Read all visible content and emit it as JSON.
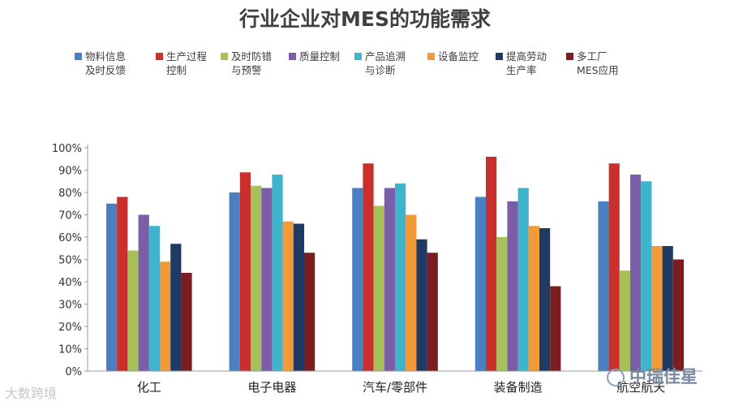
{
  "chart_data": {
    "type": "bar",
    "title": "行业企业对MES的功能需求",
    "categories": [
      "化工",
      "电子电器",
      "汽车/零部件",
      "装备制造",
      "航空航天"
    ],
    "series": [
      {
        "name": [
          "物料信息",
          "及时反馈"
        ],
        "color": "#4a7fc1",
        "values": [
          75,
          80,
          82,
          78,
          76
        ]
      },
      {
        "name": [
          "生产过程",
          "控制"
        ],
        "color": "#c9302c",
        "values": [
          78,
          89,
          93,
          96,
          93
        ]
      },
      {
        "name": [
          "及时防错",
          "与预警"
        ],
        "color": "#a6c15a",
        "values": [
          54,
          83,
          74,
          60,
          45
        ]
      },
      {
        "name": [
          "质量控制"
        ],
        "color": "#7b5ea7",
        "values": [
          70,
          82,
          82,
          76,
          88
        ]
      },
      {
        "name": [
          "产品追溯",
          "与诊断"
        ],
        "color": "#40b4cc",
        "values": [
          65,
          88,
          84,
          82,
          85
        ]
      },
      {
        "name": [
          "设备监控"
        ],
        "color": "#f29a38",
        "values": [
          49,
          67,
          70,
          65,
          56
        ]
      },
      {
        "name": [
          "提高劳动",
          "生产率"
        ],
        "color": "#1f3a63",
        "values": [
          57,
          66,
          59,
          64,
          56
        ]
      },
      {
        "name": [
          "多工厂",
          "MES应用"
        ],
        "color": "#7a1e22",
        "values": [
          44,
          53,
          53,
          38,
          50
        ]
      }
    ],
    "ylim": [
      0,
      100
    ],
    "yticks": [
      "0%",
      "10%",
      "20%",
      "30%",
      "40%",
      "50%",
      "60%",
      "70%",
      "80%",
      "90%",
      "100%"
    ],
    "grid": false,
    "legend": "top"
  },
  "watermarks": {
    "left": "大数跨境",
    "right": "中瑞佳星"
  }
}
